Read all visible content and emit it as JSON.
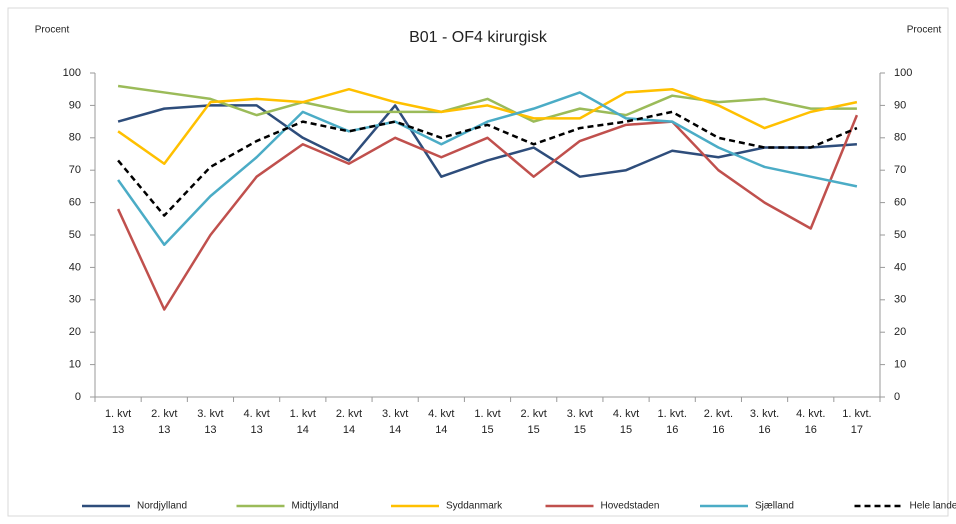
{
  "chart_data": {
    "type": "line",
    "title": "B01 - OF4 kirurgisk",
    "y_label": "Procent",
    "y2_label": "Procent",
    "categories": [
      [
        "1. kvt",
        "13"
      ],
      [
        "2. kvt",
        "13"
      ],
      [
        "3. kvt",
        "13"
      ],
      [
        "4. kvt",
        "13"
      ],
      [
        "1. kvt",
        "14"
      ],
      [
        "2. kvt",
        "14"
      ],
      [
        "3. kvt",
        "14"
      ],
      [
        "4. kvt",
        "14"
      ],
      [
        "1. kvt",
        "15"
      ],
      [
        "2. kvt",
        "15"
      ],
      [
        "3. kvt",
        "15"
      ],
      [
        "4. kvt",
        "15"
      ],
      [
        "1. kvt.",
        "16"
      ],
      [
        "2. kvt.",
        "16"
      ],
      [
        "3. kvt.",
        "16"
      ],
      [
        "4. kvt.",
        "16"
      ],
      [
        "1. kvt.",
        "17"
      ]
    ],
    "series": [
      {
        "name": "Nordjylland",
        "color": "#2e4d7b",
        "values": [
          85,
          89,
          90,
          90,
          80,
          73,
          90,
          68,
          73,
          77,
          68,
          70,
          76,
          74,
          77,
          77,
          78
        ]
      },
      {
        "name": "Midtjylland",
        "color": "#9bbb59",
        "values": [
          96,
          94,
          92,
          87,
          91,
          88,
          88,
          88,
          92,
          85,
          89,
          87,
          93,
          91,
          92,
          89,
          89
        ]
      },
      {
        "name": "Syddanmark",
        "color": "#ffc000",
        "values": [
          82,
          72,
          91,
          92,
          91,
          95,
          91,
          88,
          90,
          86,
          86,
          94,
          95,
          90,
          83,
          88,
          91
        ]
      },
      {
        "name": "Hovedstaden",
        "color": "#c0504d",
        "values": [
          58,
          27,
          50,
          68,
          78,
          72,
          80,
          74,
          80,
          68,
          79,
          84,
          85,
          70,
          60,
          52,
          87
        ]
      },
      {
        "name": "Sjælland",
        "color": "#4bacc6",
        "values": [
          67,
          47,
          62,
          74,
          88,
          82,
          85,
          78,
          85,
          89,
          94,
          86,
          85,
          77,
          71,
          68,
          65
        ]
      },
      {
        "name": "Hele landet",
        "color": "#000000",
        "line_style": "dashed",
        "values": [
          73,
          56,
          71,
          79,
          85,
          82,
          85,
          80,
          84,
          78,
          83,
          85,
          88,
          80,
          77,
          77,
          83
        ]
      }
    ],
    "ylim": [
      0,
      100
    ],
    "yticks": [
      0,
      10,
      20,
      30,
      40,
      50,
      60,
      70,
      80,
      90,
      100
    ],
    "y2lim": [
      0,
      100
    ],
    "y2ticks": [
      0,
      10,
      20,
      30,
      40,
      50,
      60,
      70,
      80,
      90,
      100
    ],
    "grid": false,
    "legend": "bottom"
  }
}
